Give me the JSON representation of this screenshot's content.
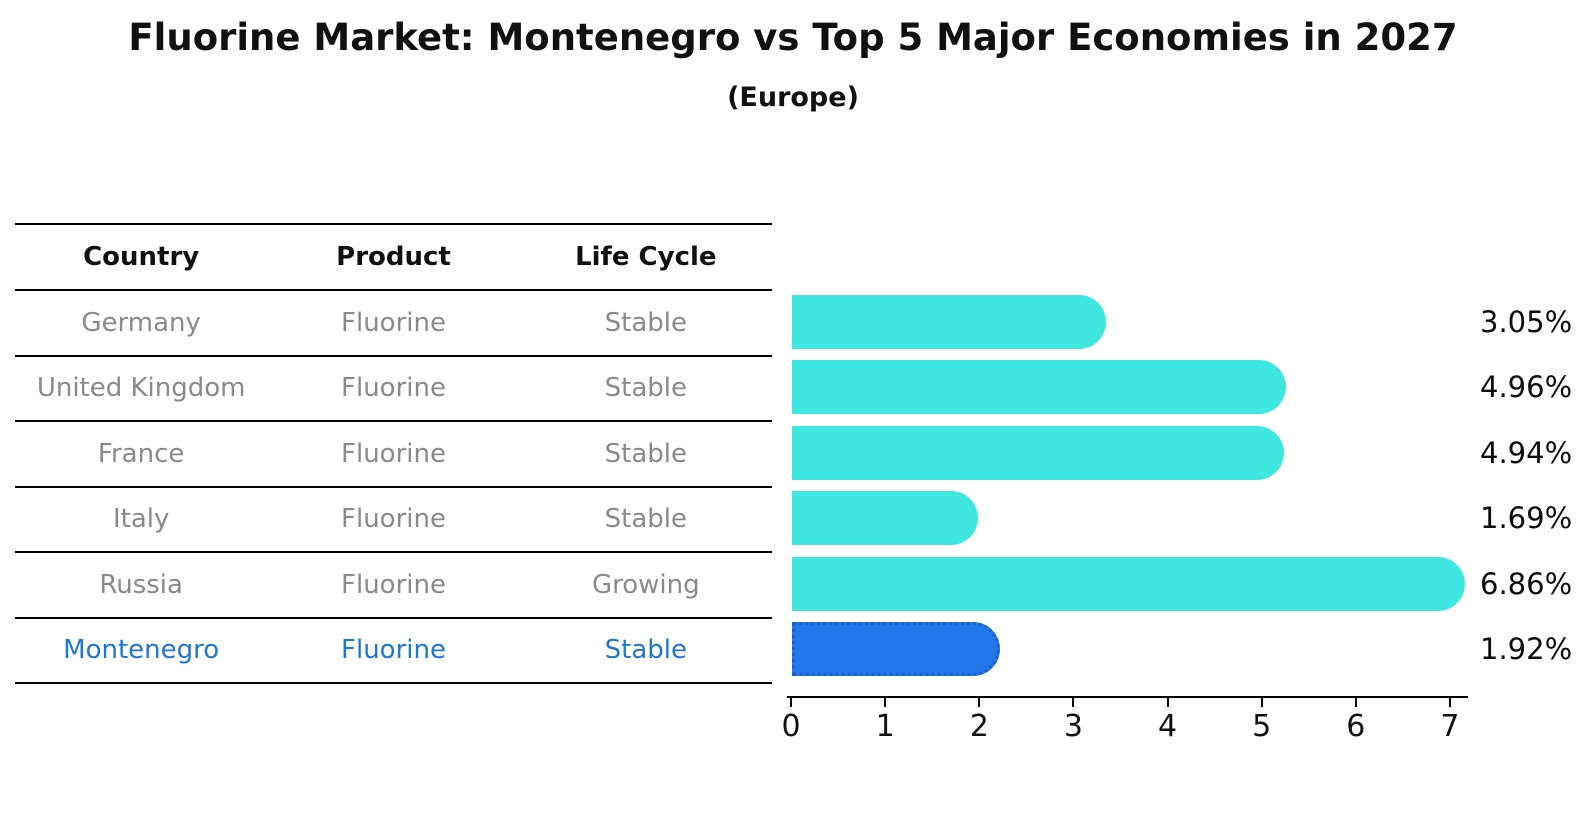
{
  "title": "Fluorine Market: Montenegro vs Top 5 Major Economies in 2027",
  "subtitle": "(Europe)",
  "table": {
    "headers": [
      "Country",
      "Product",
      "Life Cycle"
    ],
    "rows": [
      {
        "country": "Germany",
        "product": "Fluorine",
        "life_cycle": "Stable",
        "highlight": false
      },
      {
        "country": "United Kingdom",
        "product": "Fluorine",
        "life_cycle": "Stable",
        "highlight": false
      },
      {
        "country": "France",
        "product": "Fluorine",
        "life_cycle": "Stable",
        "highlight": false
      },
      {
        "country": "Italy",
        "product": "Fluorine",
        "life_cycle": "Stable",
        "highlight": false
      },
      {
        "country": "Russia",
        "product": "Fluorine",
        "life_cycle": "Growing",
        "highlight": false
      },
      {
        "country": "Montenegro",
        "product": "Fluorine",
        "life_cycle": "Stable",
        "highlight": true
      }
    ]
  },
  "chart_data": {
    "type": "bar",
    "orientation": "horizontal",
    "title": "Fluorine Market: Montenegro vs Top 5 Major Economies in 2027",
    "subtitle": "(Europe)",
    "categories": [
      "Germany",
      "United Kingdom",
      "France",
      "Italy",
      "Russia",
      "Montenegro"
    ],
    "values": [
      3.05,
      4.96,
      4.94,
      1.69,
      6.86,
      1.92
    ],
    "value_labels": [
      "3.05%",
      "4.96%",
      "4.94%",
      "1.69%",
      "6.86%",
      "1.92%"
    ],
    "xlabel": "",
    "ylabel": "",
    "xlim": [
      0,
      7
    ],
    "xticks": [
      0,
      1,
      2,
      3,
      4,
      5,
      6,
      7
    ],
    "grid": false,
    "legend": false,
    "bar_color": "#40e7e1",
    "highlight_bar_color": "#2277e8",
    "highlight_border_color": "#1a5fd0",
    "highlight_index": 5,
    "highlight_style": "dotted-border"
  },
  "colors": {
    "background": "#ffffff",
    "table_text": "#8a8a8a",
    "header_text": "#111111",
    "highlight_text": "#1f77d4",
    "axis": "#000000"
  }
}
